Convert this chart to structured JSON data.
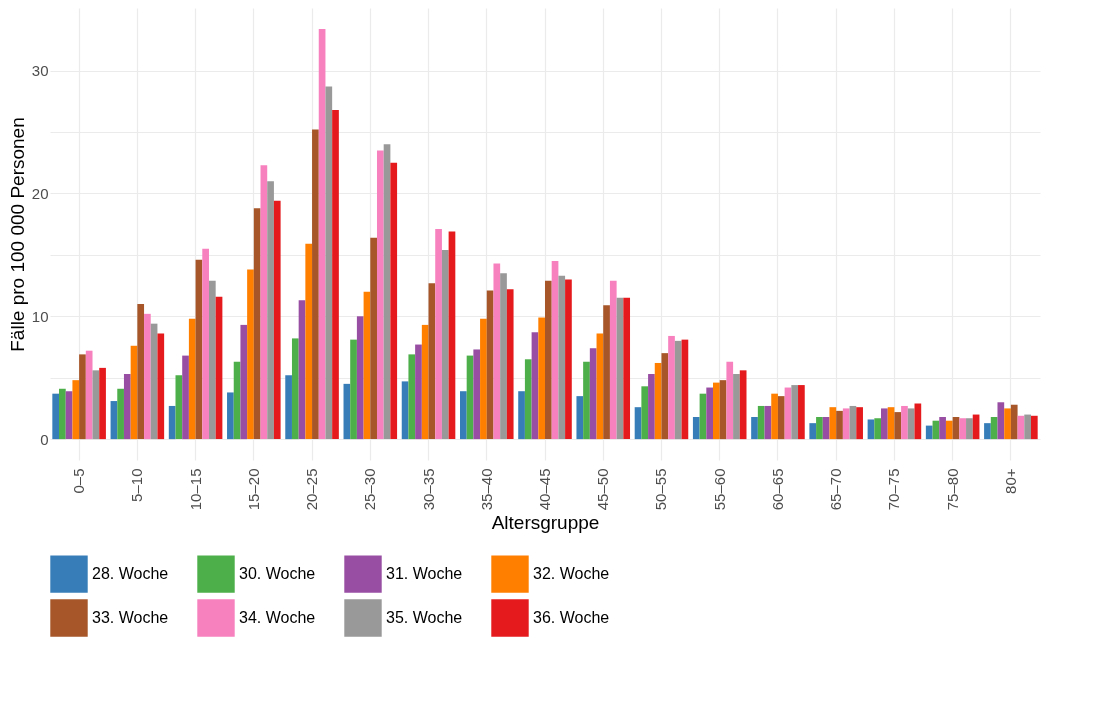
{
  "chart_data": {
    "type": "bar",
    "xlabel": "Altersgruppe",
    "ylabel": "Fälle pro 100 000 Personen",
    "categories": [
      "0–5",
      "5–10",
      "10–15",
      "15–20",
      "20–25",
      "25–30",
      "30–35",
      "35–40",
      "40–45",
      "45–50",
      "50–55",
      "55–60",
      "60–65",
      "65–70",
      "70–75",
      "75–80",
      "80+"
    ],
    "series": [
      {
        "name": "28. Woche",
        "color": "#377eb8",
        "values": [
          3.7,
          3.1,
          2.7,
          3.8,
          5.2,
          4.5,
          4.7,
          3.9,
          3.9,
          3.5,
          2.6,
          1.8,
          1.8,
          1.3,
          1.6,
          1.1,
          1.3
        ]
      },
      {
        "name": "30. Woche",
        "color": "#4daf4a",
        "values": [
          4.1,
          4.1,
          5.2,
          6.3,
          8.2,
          8.1,
          6.9,
          6.8,
          6.5,
          6.3,
          4.3,
          3.7,
          2.7,
          1.8,
          1.7,
          1.5,
          1.8
        ]
      },
      {
        "name": "31. Woche",
        "color": "#984ea3",
        "values": [
          3.9,
          5.3,
          6.8,
          9.3,
          11.3,
          10.0,
          7.7,
          7.3,
          8.7,
          7.4,
          5.3,
          4.2,
          2.7,
          1.8,
          2.5,
          1.8,
          3.0
        ]
      },
      {
        "name": "32. Woche",
        "color": "#ff7f00",
        "values": [
          4.8,
          7.6,
          9.8,
          13.8,
          15.9,
          12.0,
          9.3,
          9.8,
          9.9,
          8.6,
          6.2,
          4.6,
          3.7,
          2.6,
          2.6,
          1.5,
          2.5
        ]
      },
      {
        "name": "33. Woche",
        "color": "#a65628",
        "values": [
          6.9,
          11.0,
          14.6,
          18.8,
          25.2,
          16.4,
          12.7,
          12.1,
          12.9,
          10.9,
          7.0,
          4.8,
          3.5,
          2.3,
          2.2,
          1.8,
          2.8
        ]
      },
      {
        "name": "34. Woche",
        "color": "#f781bf",
        "values": [
          7.2,
          10.2,
          15.5,
          22.3,
          33.4,
          23.5,
          17.1,
          14.3,
          14.5,
          12.9,
          8.4,
          6.3,
          4.2,
          2.5,
          2.7,
          1.7,
          1.9
        ]
      },
      {
        "name": "35. Woche",
        "color": "#999999",
        "values": [
          5.6,
          9.4,
          12.9,
          21.0,
          28.7,
          24.0,
          15.4,
          13.5,
          13.3,
          11.5,
          8.0,
          5.3,
          4.4,
          2.7,
          2.5,
          1.7,
          2.0
        ]
      },
      {
        "name": "36. Woche",
        "color": "#e41a1c",
        "values": [
          5.8,
          8.6,
          11.6,
          19.4,
          26.8,
          22.5,
          16.9,
          12.2,
          13.0,
          11.5,
          8.1,
          5.6,
          4.4,
          2.6,
          2.9,
          2.0,
          1.9
        ]
      }
    ],
    "ylim": [
      -1.7,
      35.1
    ],
    "yticks": [
      0,
      {
        "value": 5,
        "label": null
      },
      10,
      {
        "value": 15,
        "label": null
      },
      20,
      {
        "value": 25,
        "label": null
      },
      30
    ],
    "grid": true,
    "legend": "bottom"
  }
}
